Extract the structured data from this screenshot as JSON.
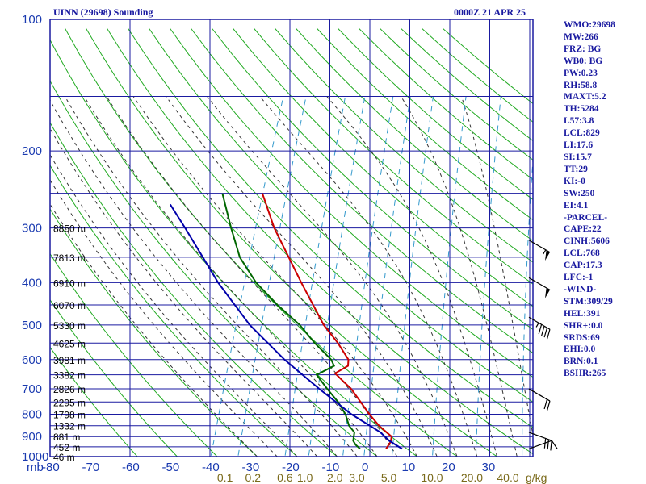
{
  "header": {
    "title": "UINN (29698) Sounding",
    "timestamp": "0000Z 21 APR 25"
  },
  "indices": [
    "WMO:29698",
    "MW:266",
    "FRZ: BG",
    "WB0: BG",
    "PW:0.23",
    "RH:58.8",
    "MAXT:5.2",
    "TH:5284",
    "L57:3.8",
    "LCL:829",
    "LI:17.6",
    "SI:15.7",
    "TT:29",
    "KI:-0",
    "SW:250",
    "EI:4.1",
    "-PARCEL-",
    "CAPE:22",
    "CINH:5606",
    "LCL:768",
    "CAP:17.3",
    "LFC:-1",
    "-WIND-",
    "STM:309/29",
    "HEL:391",
    "SHR+:0.0",
    "SRDS:69",
    "EHI:0.0",
    "BRN:0.1",
    "BSHR:265"
  ],
  "colors": {
    "grid": "#1a1aa0",
    "dry_adiabat": "#22aa22",
    "moist_adiabat": "#333333",
    "mixing_ratio": "#3399cc",
    "temperature": "#cc0000",
    "dewpoint": "#006600",
    "parcel": "#0000aa",
    "wind_barb": "#000000"
  },
  "chart_data": {
    "type": "line",
    "title": "UINN (29698) Sounding",
    "xlabel": "",
    "ylabel": "",
    "x_unit_label": "mb",
    "mixing_unit_label": "g/kg",
    "xlim": [
      -80,
      0
    ],
    "pressure_range": [
      1000,
      100
    ],
    "pressure_ticks": [
      "100",
      "200",
      "300",
      "400",
      "500",
      "600",
      "700",
      "800",
      "900",
      "1000"
    ],
    "pressure_tick_values": [
      100,
      200,
      300,
      400,
      500,
      600,
      700,
      800,
      900,
      1000
    ],
    "temperature_ticks": [
      -80,
      -70,
      -60,
      -50,
      -40,
      -30,
      -20,
      -10,
      0,
      10,
      20,
      30
    ],
    "temperature_tick_labels": [
      "-80",
      "-70",
      "-60",
      "-50",
      "-40",
      "-30",
      "-20",
      "-10",
      "0",
      "10",
      "20",
      "30"
    ],
    "mixing_ratio_labels": [
      "0.1",
      "0.2",
      "0.6",
      "1.0",
      "2.0",
      "3.0",
      "5.0",
      "10.0",
      "20.0",
      "40.0"
    ],
    "mixing_ratio_label_temps": [
      -38,
      -31,
      -23,
      -18,
      -10.5,
      -5,
      3,
      13,
      23,
      32
    ],
    "height_labels": [
      {
        "label": "8850 m",
        "p": 300
      },
      {
        "label": "7813 m",
        "p": 350
      },
      {
        "label": "6910 m",
        "p": 400
      },
      {
        "label": "6070 m",
        "p": 450
      },
      {
        "label": "5330 m",
        "p": 500
      },
      {
        "label": "4625 m",
        "p": 550
      },
      {
        "label": "3981 m",
        "p": 600
      },
      {
        "label": "3382 m",
        "p": 650
      },
      {
        "label": "2826 m",
        "p": 700
      },
      {
        "label": "2295 m",
        "p": 750
      },
      {
        "label": "1798 m",
        "p": 800
      },
      {
        "label": "1332 m",
        "p": 850
      },
      {
        "label": "881 m",
        "p": 900
      },
      {
        "label": "452 m",
        "p": 950
      },
      {
        "label": "46 m",
        "p": 1000
      }
    ],
    "series": [
      {
        "name": "",
        "role": "temperature",
        "points": [
          {
            "p": 250,
            "t": -54
          },
          {
            "p": 300,
            "t": -47.7
          },
          {
            "p": 400,
            "t": -35.7
          },
          {
            "p": 500,
            "t": -26.0
          },
          {
            "p": 550,
            "t": -20.7
          },
          {
            "p": 600,
            "t": -16.5
          },
          {
            "p": 620,
            "t": -16.0
          },
          {
            "p": 645,
            "t": -18.5
          },
          {
            "p": 670,
            "t": -16.0
          },
          {
            "p": 700,
            "t": -13.0
          },
          {
            "p": 800,
            "t": -6.0
          },
          {
            "p": 850,
            "t": -2.5
          },
          {
            "p": 900,
            "t": 1.7
          },
          {
            "p": 925,
            "t": 2.0
          },
          {
            "p": 960,
            "t": 1.5
          }
        ]
      },
      {
        "name": "",
        "role": "dewpoint",
        "points": [
          {
            "p": 250,
            "t": -64
          },
          {
            "p": 300,
            "t": -58.5
          },
          {
            "p": 350,
            "t": -53.5
          },
          {
            "p": 400,
            "t": -47.0
          },
          {
            "p": 450,
            "t": -39.5
          },
          {
            "p": 500,
            "t": -32.0
          },
          {
            "p": 550,
            "t": -26.5
          },
          {
            "p": 600,
            "t": -20.8
          },
          {
            "p": 620,
            "t": -19.5
          },
          {
            "p": 650,
            "t": -23.0
          },
          {
            "p": 700,
            "t": -19.0
          },
          {
            "p": 750,
            "t": -15.0
          },
          {
            "p": 800,
            "t": -12.0
          },
          {
            "p": 850,
            "t": -10.0
          },
          {
            "p": 880,
            "t": -8.0
          },
          {
            "p": 920,
            "t": -7.5
          },
          {
            "p": 940,
            "t": -6.5
          },
          {
            "p": 960,
            "t": -5.0
          }
        ]
      },
      {
        "name": "",
        "role": "parcel",
        "points": [
          {
            "p": 265,
            "t": -76
          },
          {
            "p": 300,
            "t": -70
          },
          {
            "p": 400,
            "t": -56.5
          },
          {
            "p": 500,
            "t": -44.5
          },
          {
            "p": 600,
            "t": -32.5
          },
          {
            "p": 700,
            "t": -21.0
          },
          {
            "p": 800,
            "t": -10.5
          },
          {
            "p": 880,
            "t": -1.5
          },
          {
            "p": 920,
            "t": 1.5
          },
          {
            "p": 960,
            "t": 5.5
          }
        ]
      }
    ],
    "wind_barbs": [
      {
        "p": 320,
        "dir": 300,
        "speed": 55
      },
      {
        "p": 390,
        "dir": 300,
        "speed": 50
      },
      {
        "p": 480,
        "dir": 300,
        "speed": 45
      },
      {
        "p": 700,
        "dir": 300,
        "speed": 20
      },
      {
        "p": 880,
        "dir": 290,
        "speed": 30
      },
      {
        "p": 960,
        "dir": 250,
        "speed": 10
      }
    ]
  }
}
